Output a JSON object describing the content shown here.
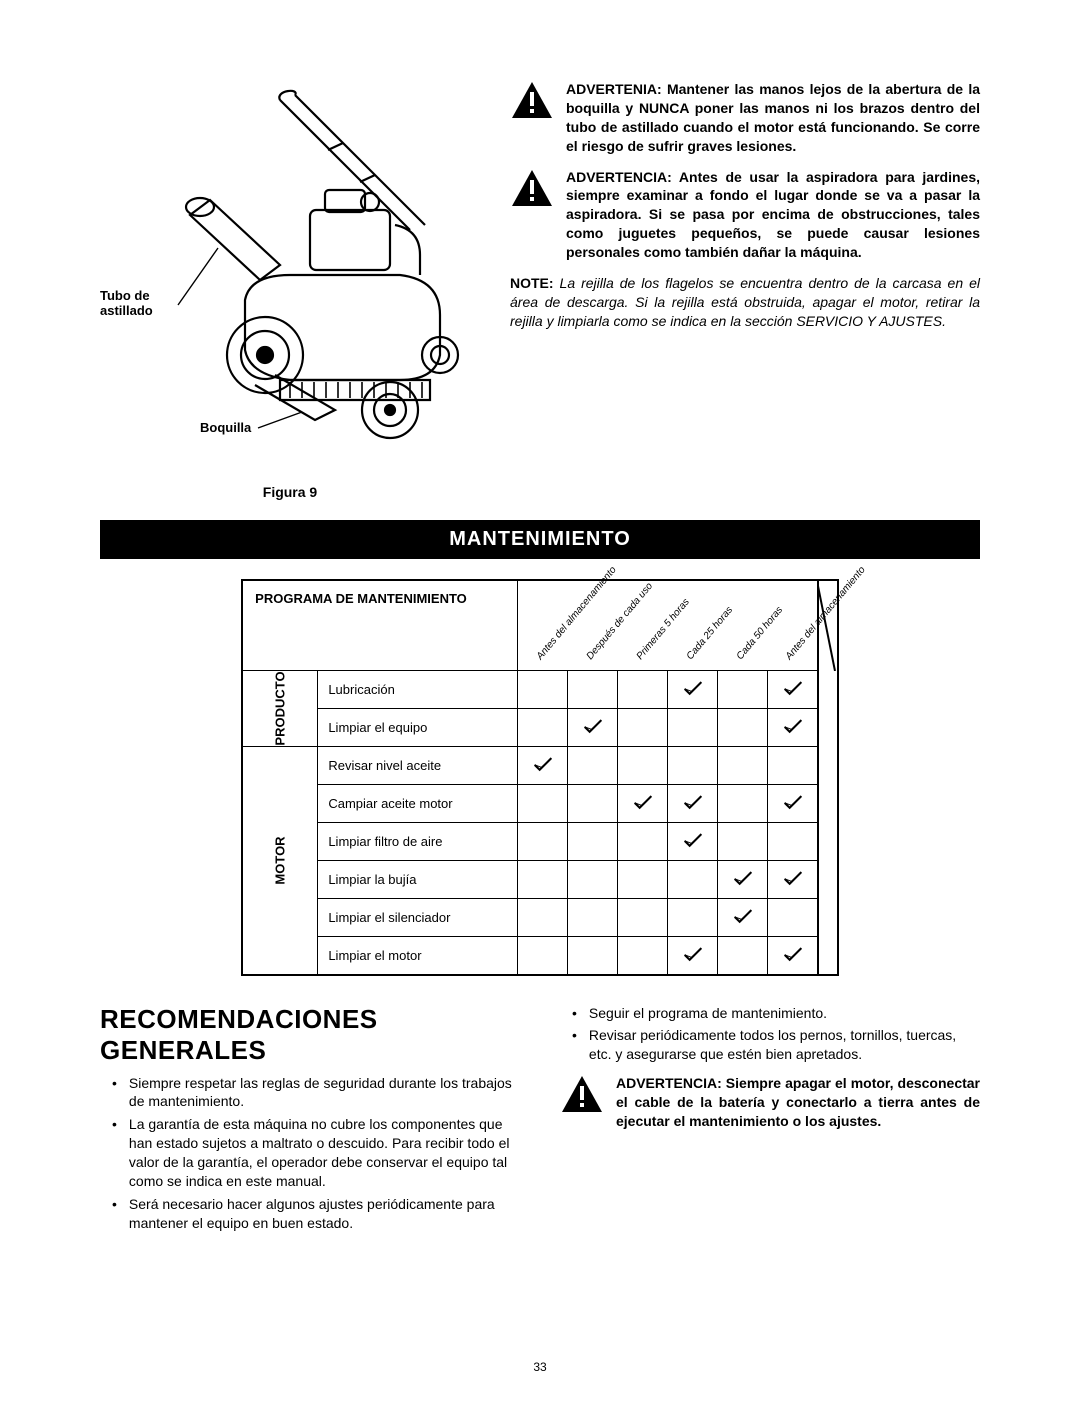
{
  "figure": {
    "labels": {
      "tubo": "Tubo de\nastillado",
      "boquilla": "Boquilla"
    },
    "caption": "Figura 9"
  },
  "warnings": {
    "w1": "ADVERTENIA: Mantener las manos lejos de la abertura de la boquilla y NUNCA poner las manos ni los brazos dentro del tubo de astillado cuando el motor está funcionando. Se corre el riesgo de sufrir graves lesiones.",
    "w2": "ADVERTENCIA: Antes de usar la aspiradora para jardines, siempre examinar a fondo el lugar donde se va a pasar la aspiradora. Si se pasa por encima de obstrucciones, tales como juguetes pequeños, se puede causar lesiones personales como también dañar la máquina.",
    "note_label": "NOTE:",
    "note_body": "La rejilla de los flagelos se encuentra dentro de la carcasa en el área de descarga. Si la rejilla está obstruida, apagar el motor, retirar la rejilla y limpiarla como se indica en la sección SERVICIO Y AJUSTES."
  },
  "section_header": "MANTENIMIENTO",
  "table": {
    "title": "PROGRAMA DE MANTENIMIENTO",
    "columns": [
      "Antes del almacenamiento",
      "Después de cada uso",
      "Primeras 5 horas",
      "Cada 25 horas",
      "Cada 50 horas",
      "Antes del almacenamiento"
    ],
    "groups": [
      {
        "label": "PRODUCTO",
        "rows": [
          {
            "task": "Lubricación",
            "checks": [
              0,
              0,
              0,
              1,
              0,
              1
            ]
          },
          {
            "task": "Limpiar el equipo",
            "checks": [
              0,
              1,
              0,
              0,
              0,
              1
            ]
          }
        ]
      },
      {
        "label": "MOTOR",
        "rows": [
          {
            "task": "Revisar nivel aceite",
            "checks": [
              1,
              0,
              0,
              0,
              0,
              0
            ]
          },
          {
            "task": "Campiar aceite motor",
            "checks": [
              0,
              0,
              1,
              1,
              0,
              1
            ]
          },
          {
            "task": "Limpiar filtro de aire",
            "checks": [
              0,
              0,
              0,
              1,
              0,
              0
            ]
          },
          {
            "task": "Limpiar la bujía",
            "checks": [
              0,
              0,
              0,
              0,
              1,
              1
            ]
          },
          {
            "task": "Limpiar el silenciador",
            "checks": [
              0,
              0,
              0,
              0,
              1,
              0
            ]
          },
          {
            "task": "Limpiar el motor",
            "checks": [
              0,
              0,
              0,
              1,
              0,
              1
            ]
          }
        ]
      }
    ]
  },
  "recommendations": {
    "heading": "RECOMENDACIONES GENERALES",
    "left": [
      "Siempre respetar las reglas de seguridad durante los trabajos de mantenimiento.",
      "La garantía de esta máquina no cubre los componentes que han estado sujetos a maltrato o descuido. Para recibir todo el valor de la garantía, el operador debe conservar el equipo tal como se indica en este manual.",
      "Será necesario hacer algunos ajustes periódicamente para mantener el equipo en buen estado."
    ],
    "right": [
      "Seguir el programa de mantenimiento.",
      "Revisar periódicamente todos los pernos, tornillos, tuercas, etc. y asegurarse que estén bien apretados."
    ],
    "warning3": "ADVERTENCIA: Siempre apagar el motor, desconectar el cable de la batería y conectarlo a tierra antes de ejecutar el mantenimiento o los ajustes."
  },
  "page_number": "33",
  "colors": {
    "black": "#000000",
    "white": "#ffffff"
  }
}
